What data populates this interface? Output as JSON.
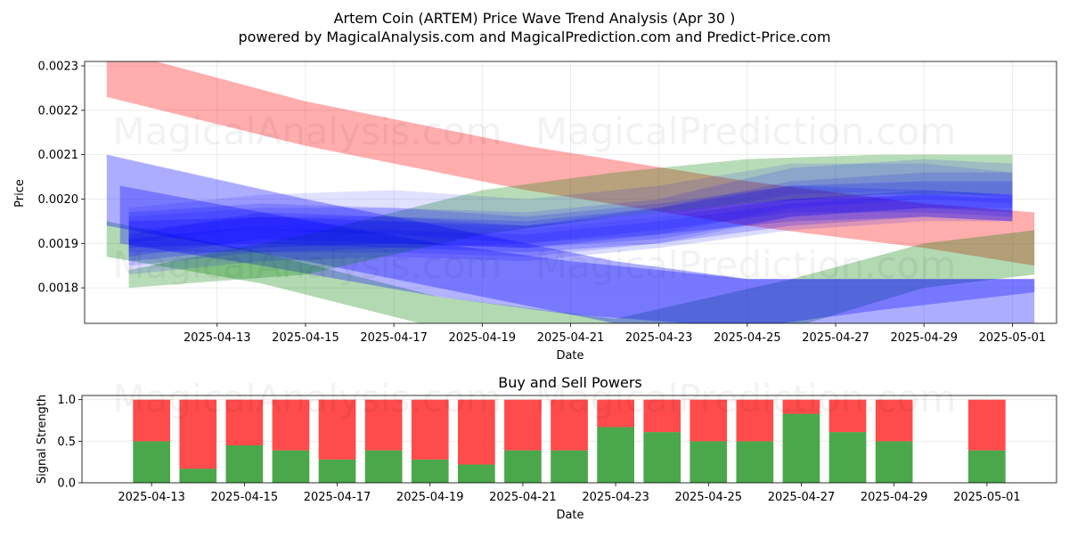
{
  "title_line1": "Artem Coin (ARTEM) Price Wave Trend Analysis (Apr 30 )",
  "title_line2": "powered by MagicalAnalysis.com and MagicalPrediction.com and Predict-Price.com",
  "watermarks": [
    "MagicalAnalysis.com",
    "MagicalPrediction.com"
  ],
  "colors": {
    "red": "#ff0000",
    "green": "#008000",
    "blue": "#0000ff",
    "buy": "#4aa84a",
    "sell": "#ff4b4b"
  },
  "chart_data": [
    {
      "type": "area",
      "name": "price-wave-trend",
      "xlabel": "Date",
      "ylabel": "Price",
      "xlim": [
        "2025-04-10",
        "2025-05-02"
      ],
      "ylim": [
        0.00172,
        0.00231
      ],
      "x_ticks": [
        "2025-04-13",
        "2025-04-15",
        "2025-04-17",
        "2025-04-19",
        "2025-04-21",
        "2025-04-23",
        "2025-04-25",
        "2025-04-27",
        "2025-04-29",
        "2025-05-01"
      ],
      "y_ticks": [
        "0.0018",
        "0.0019",
        "0.0020",
        "0.0021",
        "0.0022",
        "0.0023"
      ],
      "grid": true,
      "bands": [
        {
          "color": "red",
          "opacity": 0.32,
          "points": [
            [
              "2025-04-10.5",
              0.00234,
              0.00223
            ],
            [
              "2025-04-15",
              0.00222,
              0.00212
            ],
            [
              "2025-04-20",
              0.00212,
              0.00202
            ],
            [
              "2025-04-25",
              0.00204,
              0.00194
            ],
            [
              "2025-04-29",
              0.00199,
              0.00189
            ],
            [
              "2025-05-01.5",
              0.00197,
              0.00185
            ]
          ]
        },
        {
          "color": "green",
          "opacity": 0.3,
          "points": [
            [
              "2025-04-10.5",
              0.00195,
              0.00187
            ],
            [
              "2025-04-14",
              0.00188,
              0.00181
            ],
            [
              "2025-04-18",
              0.00178,
              0.00171
            ],
            [
              "2025-04-22",
              0.00173,
              0.00168
            ],
            [
              "2025-04-26",
              0.00182,
              0.00171
            ],
            [
              "2025-04-29",
              0.0019,
              0.0018
            ],
            [
              "2025-05-01.5",
              0.00193,
              0.00183
            ]
          ]
        },
        {
          "color": "blue",
          "opacity": 0.32,
          "points": [
            [
              "2025-04-10.5",
              0.0021,
              0.00194
            ],
            [
              "2025-04-15",
              0.002,
              0.00186
            ],
            [
              "2025-04-19",
              0.00192,
              0.00178
            ],
            [
              "2025-04-22",
              0.00186,
              0.00172
            ],
            [
              "2025-04-25",
              0.00182,
              0.0017
            ],
            [
              "2025-04-28",
              0.00182,
              0.00172
            ],
            [
              "2025-05-01.5",
              0.00182,
              0.0017
            ]
          ]
        },
        {
          "color": "blue",
          "opacity": 0.3,
          "points": [
            [
              "2025-04-10.8",
              0.00203,
              0.0019
            ],
            [
              "2025-04-14",
              0.00197,
              0.00185
            ],
            [
              "2025-04-18",
              0.0019,
              0.00178
            ],
            [
              "2025-04-21",
              0.00186,
              0.00174
            ],
            [
              "2025-04-25",
              0.00182,
              0.00171
            ],
            [
              "2025-04-28",
              0.00182,
              0.00175
            ],
            [
              "2025-05-01.5",
              0.00182,
              0.00179
            ]
          ]
        },
        {
          "color": "green",
          "opacity": 0.28,
          "points": [
            [
              "2025-04-11",
              0.00184,
              0.0018
            ],
            [
              "2025-04-15",
              0.00192,
              0.00183
            ],
            [
              "2025-04-19",
              0.00202,
              0.00192
            ],
            [
              "2025-04-22",
              0.00206,
              0.00196
            ],
            [
              "2025-04-25",
              0.00209,
              0.00199
            ],
            [
              "2025-04-28",
              0.0021,
              0.00201
            ],
            [
              "2025-05-01",
              0.0021,
              0.00201
            ]
          ]
        },
        {
          "color": "blue",
          "opacity": 0.14,
          "points": [
            [
              "2025-04-11",
              0.00196,
              0.00188
            ],
            [
              "2025-04-14",
              0.00198,
              0.00188
            ],
            [
              "2025-04-17",
              0.00198,
              0.00189
            ],
            [
              "2025-04-20",
              0.00197,
              0.0019
            ],
            [
              "2025-04-23",
              0.002,
              0.00192
            ],
            [
              "2025-04-26",
              0.00207,
              0.00198
            ],
            [
              "2025-04-29",
              0.00209,
              0.002
            ],
            [
              "2025-05-01",
              0.00208,
              0.00199
            ]
          ]
        },
        {
          "color": "blue",
          "opacity": 0.14,
          "points": [
            [
              "2025-04-11",
              0.00193,
              0.00185
            ],
            [
              "2025-04-14",
              0.00196,
              0.00188
            ],
            [
              "2025-04-17",
              0.00196,
              0.00188
            ],
            [
              "2025-04-20",
              0.00194,
              0.00187
            ],
            [
              "2025-04-23",
              0.00198,
              0.0019
            ],
            [
              "2025-04-26",
              0.00204,
              0.00196
            ],
            [
              "2025-04-29",
              0.00206,
              0.00198
            ],
            [
              "2025-05-01",
              0.00206,
              0.00198
            ]
          ]
        },
        {
          "color": "blue",
          "opacity": 0.18,
          "points": [
            [
              "2025-04-11",
              0.00192,
              0.00187
            ],
            [
              "2025-04-14",
              0.00197,
              0.00191
            ],
            [
              "2025-04-17",
              0.00196,
              0.0019
            ],
            [
              "2025-04-20",
              0.00195,
              0.00189
            ],
            [
              "2025-04-23",
              0.00198,
              0.00191
            ],
            [
              "2025-04-26",
              0.00203,
              0.00196
            ],
            [
              "2025-04-29",
              0.00204,
              0.00198
            ],
            [
              "2025-05-01",
              0.00204,
              0.00197
            ]
          ]
        },
        {
          "color": "blue",
          "opacity": 0.2,
          "points": [
            [
              "2025-04-11",
              0.00195,
              0.00189
            ],
            [
              "2025-04-14",
              0.00196,
              0.0019
            ],
            [
              "2025-04-17",
              0.00195,
              0.00189
            ],
            [
              "2025-04-20",
              0.00193,
              0.00188
            ],
            [
              "2025-04-23",
              0.00196,
              0.0019
            ],
            [
              "2025-04-26",
              0.002,
              0.00194
            ],
            [
              "2025-04-29",
              0.00202,
              0.00196
            ],
            [
              "2025-05-01",
              0.00201,
              0.00195
            ]
          ]
        },
        {
          "color": "blue",
          "opacity": 0.2,
          "points": [
            [
              "2025-04-11",
              0.00191,
              0.00186
            ],
            [
              "2025-04-14",
              0.00194,
              0.00189
            ],
            [
              "2025-04-17",
              0.00195,
              0.0019
            ],
            [
              "2025-04-20",
              0.00194,
              0.00189
            ],
            [
              "2025-04-23",
              0.00197,
              0.00192
            ],
            [
              "2025-04-26",
              0.002,
              0.00195
            ],
            [
              "2025-04-29",
              0.00201,
              0.00196
            ],
            [
              "2025-05-01",
              0.002,
              0.00195
            ]
          ]
        },
        {
          "color": "blue",
          "opacity": 0.16,
          "points": [
            [
              "2025-04-11",
              0.00197,
              0.0019
            ],
            [
              "2025-04-14",
              0.00199,
              0.00193
            ],
            [
              "2025-04-17",
              0.00198,
              0.00192
            ],
            [
              "2025-04-20",
              0.00196,
              0.0019
            ],
            [
              "2025-04-23",
              0.00199,
              0.00193
            ],
            [
              "2025-04-26",
              0.00203,
              0.00197
            ],
            [
              "2025-04-29",
              0.00202,
              0.00197
            ],
            [
              "2025-05-01",
              0.00201,
              0.00196
            ]
          ]
        },
        {
          "color": "blue",
          "opacity": 0.14,
          "points": [
            [
              "2025-04-11",
              0.0019,
              0.00183
            ],
            [
              "2025-04-14",
              0.00193,
              0.00186
            ],
            [
              "2025-04-17",
              0.00193,
              0.00187
            ],
            [
              "2025-04-20",
              0.00192,
              0.00186
            ],
            [
              "2025-04-23",
              0.00195,
              0.00189
            ],
            [
              "2025-04-26",
              0.00199,
              0.00193
            ],
            [
              "2025-04-29",
              0.00201,
              0.00195
            ],
            [
              "2025-05-01",
              0.00201,
              0.00195
            ]
          ]
        },
        {
          "color": "blue",
          "opacity": 0.12,
          "points": [
            [
              "2025-04-11",
              0.00198,
              0.0019
            ],
            [
              "2025-04-14",
              0.00201,
              0.00194
            ],
            [
              "2025-04-17",
              0.00202,
              0.00195
            ],
            [
              "2025-04-20",
              0.002,
              0.00193
            ],
            [
              "2025-04-23",
              0.00203,
              0.00196
            ],
            [
              "2025-04-26",
              0.00208,
              0.00201
            ],
            [
              "2025-04-29",
              0.00208,
              0.00202
            ],
            [
              "2025-05-01",
              0.00206,
              0.002
            ]
          ]
        }
      ]
    },
    {
      "type": "bar",
      "name": "buy-sell-powers",
      "title": "Buy and Sell Powers",
      "xlabel": "Date",
      "ylabel": "Signal Strength",
      "xlim": [
        "2025-04-11.5",
        "2025-05-02.5"
      ],
      "ylim": [
        0,
        1.05
      ],
      "x_ticks": [
        "2025-04-13",
        "2025-04-15",
        "2025-04-17",
        "2025-04-19",
        "2025-04-21",
        "2025-04-23",
        "2025-04-25",
        "2025-04-27",
        "2025-04-29",
        "2025-05-01"
      ],
      "y_ticks": [
        "0.0",
        "0.5",
        "1.0"
      ],
      "grid": true,
      "categories": [
        "2025-04-13",
        "2025-04-14",
        "2025-04-15",
        "2025-04-16",
        "2025-04-17",
        "2025-04-18",
        "2025-04-19",
        "2025-04-20",
        "2025-04-21",
        "2025-04-22",
        "2025-04-23",
        "2025-04-24",
        "2025-04-25",
        "2025-04-26",
        "2025-04-27",
        "2025-04-28",
        "2025-04-29",
        "2025-05-01"
      ],
      "series": [
        {
          "values": [
            0.5,
            0.17,
            0.45,
            0.39,
            0.28,
            0.39,
            0.28,
            0.22,
            0.39,
            0.39,
            0.67,
            0.61,
            0.5,
            0.5,
            0.83,
            0.61,
            0.5,
            0.39
          ]
        },
        {
          "values": [
            0.5,
            0.83,
            0.55,
            0.61,
            0.72,
            0.61,
            0.72,
            0.78,
            0.61,
            0.61,
            0.33,
            0.39,
            0.5,
            0.5,
            0.17,
            0.39,
            0.5,
            0.61
          ]
        }
      ]
    }
  ]
}
